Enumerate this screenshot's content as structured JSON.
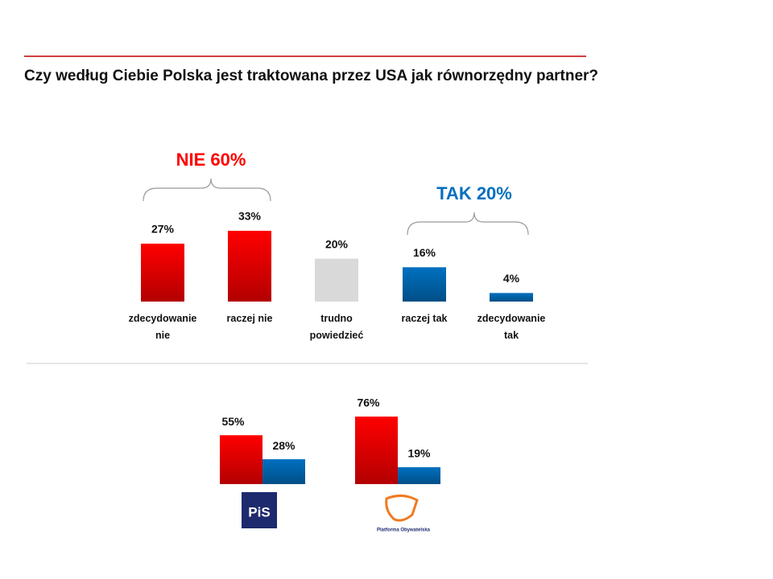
{
  "title": "Czy według Ciebie Polska jest traktowana przez USA jak równorzędny partner?",
  "chart_data": [
    {
      "type": "bar",
      "categories": [
        "zdecydowanie nie",
        "raczej nie",
        "trudno powiedzieć",
        "raczej tak",
        "zdecydowanie tak"
      ],
      "values": [
        27,
        33,
        20,
        16,
        4
      ],
      "value_labels": [
        "27%",
        "33%",
        "20%",
        "16%",
        "4%"
      ],
      "colors": [
        "#ff0000",
        "#ff0000",
        "#d9d9d9",
        "#0070c0",
        "#0070c0"
      ],
      "annotations": [
        {
          "text": "NIE 60%",
          "color": "#ff0000"
        },
        {
          "text": "TAK 20%",
          "color": "#0070c0"
        }
      ]
    },
    {
      "type": "grouped-bar",
      "categories": [
        "PiS",
        "Platforma Obywatelska"
      ],
      "series": [
        {
          "color": "#ff0000",
          "values": [
            55,
            76
          ],
          "value_labels": [
            "55%",
            "76%"
          ]
        },
        {
          "color": "#0070c0",
          "values": [
            28,
            19
          ],
          "value_labels": [
            "28%",
            "19%"
          ]
        }
      ]
    }
  ]
}
